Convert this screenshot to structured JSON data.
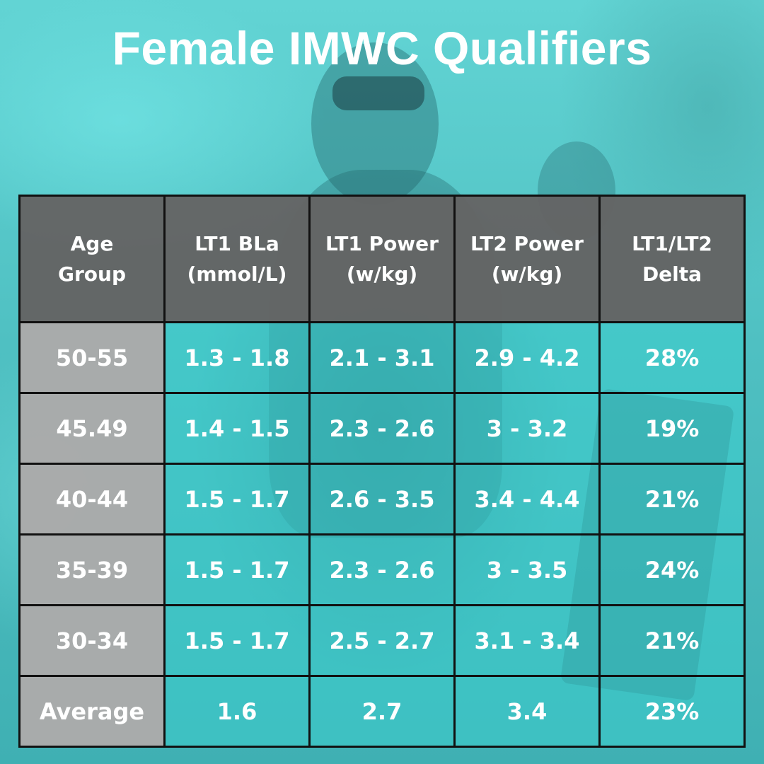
{
  "title": "Female IMWC Qualifiers",
  "table": {
    "headers": [
      [
        "Age",
        "Group"
      ],
      [
        "LT1 BLa",
        "(mmol/L)"
      ],
      [
        "LT1 Power",
        "(w/kg)"
      ],
      [
        "LT2 Power",
        "(w/kg)"
      ],
      [
        "LT1/LT2",
        "Delta"
      ]
    ],
    "rows": [
      [
        "50-55",
        "1.3 - 1.8",
        "2.1 - 3.1",
        "2.9 - 4.2",
        "28%"
      ],
      [
        "45.49",
        "1.4 - 1.5",
        "2.3 - 2.6",
        "3 - 3.2",
        "19%"
      ],
      [
        "40-44",
        "1.5 - 1.7",
        "2.6 - 3.5",
        "3.4 - 4.4",
        "21%"
      ],
      [
        "35-39",
        "1.5 - 1.7",
        "2.3 - 2.6",
        "3 - 3.5",
        "24%"
      ],
      [
        "30-34",
        "1.5 - 1.7",
        "2.5 - 2.7",
        "3.1 - 3.4",
        "21%"
      ]
    ],
    "average": [
      "Average",
      "1.6",
      "2.7",
      "3.4",
      "23%"
    ]
  },
  "colors": {
    "header_bg": "#646464",
    "age_col_bg": "#aaaaaa",
    "cell_tint": "#3ccdcd",
    "border": "#111111",
    "text": "#ffffff"
  }
}
